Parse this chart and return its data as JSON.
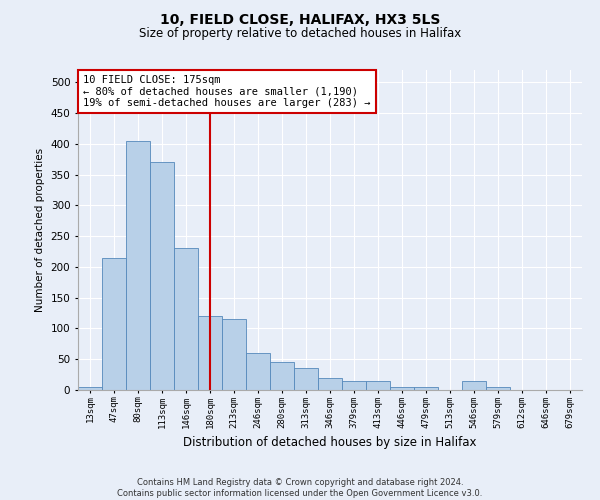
{
  "title1": "10, FIELD CLOSE, HALIFAX, HX3 5LS",
  "title2": "Size of property relative to detached houses in Halifax",
  "xlabel": "Distribution of detached houses by size in Halifax",
  "ylabel": "Number of detached properties",
  "categories": [
    "13sqm",
    "47sqm",
    "80sqm",
    "113sqm",
    "146sqm",
    "180sqm",
    "213sqm",
    "246sqm",
    "280sqm",
    "313sqm",
    "346sqm",
    "379sqm",
    "413sqm",
    "446sqm",
    "479sqm",
    "513sqm",
    "546sqm",
    "579sqm",
    "612sqm",
    "646sqm",
    "679sqm"
  ],
  "values": [
    5,
    215,
    405,
    370,
    230,
    120,
    115,
    60,
    45,
    35,
    20,
    15,
    15,
    5,
    5,
    0,
    15,
    5,
    0,
    0,
    0
  ],
  "bar_color": "#b8d0e8",
  "bar_edge_color": "#5588bb",
  "red_line_x": 5.0,
  "annotation_title": "10 FIELD CLOSE: 175sqm",
  "annotation_line1": "← 80% of detached houses are smaller (1,190)",
  "annotation_line2": "19% of semi-detached houses are larger (283) →",
  "annotation_box_color": "#ffffff",
  "annotation_box_edge": "#cc0000",
  "red_line_color": "#cc0000",
  "ylim": [
    0,
    520
  ],
  "yticks": [
    0,
    50,
    100,
    150,
    200,
    250,
    300,
    350,
    400,
    450,
    500
  ],
  "footer1": "Contains HM Land Registry data © Crown copyright and database right 2024.",
  "footer2": "Contains public sector information licensed under the Open Government Licence v3.0.",
  "background_color": "#e8eef8",
  "grid_color": "#ffffff"
}
